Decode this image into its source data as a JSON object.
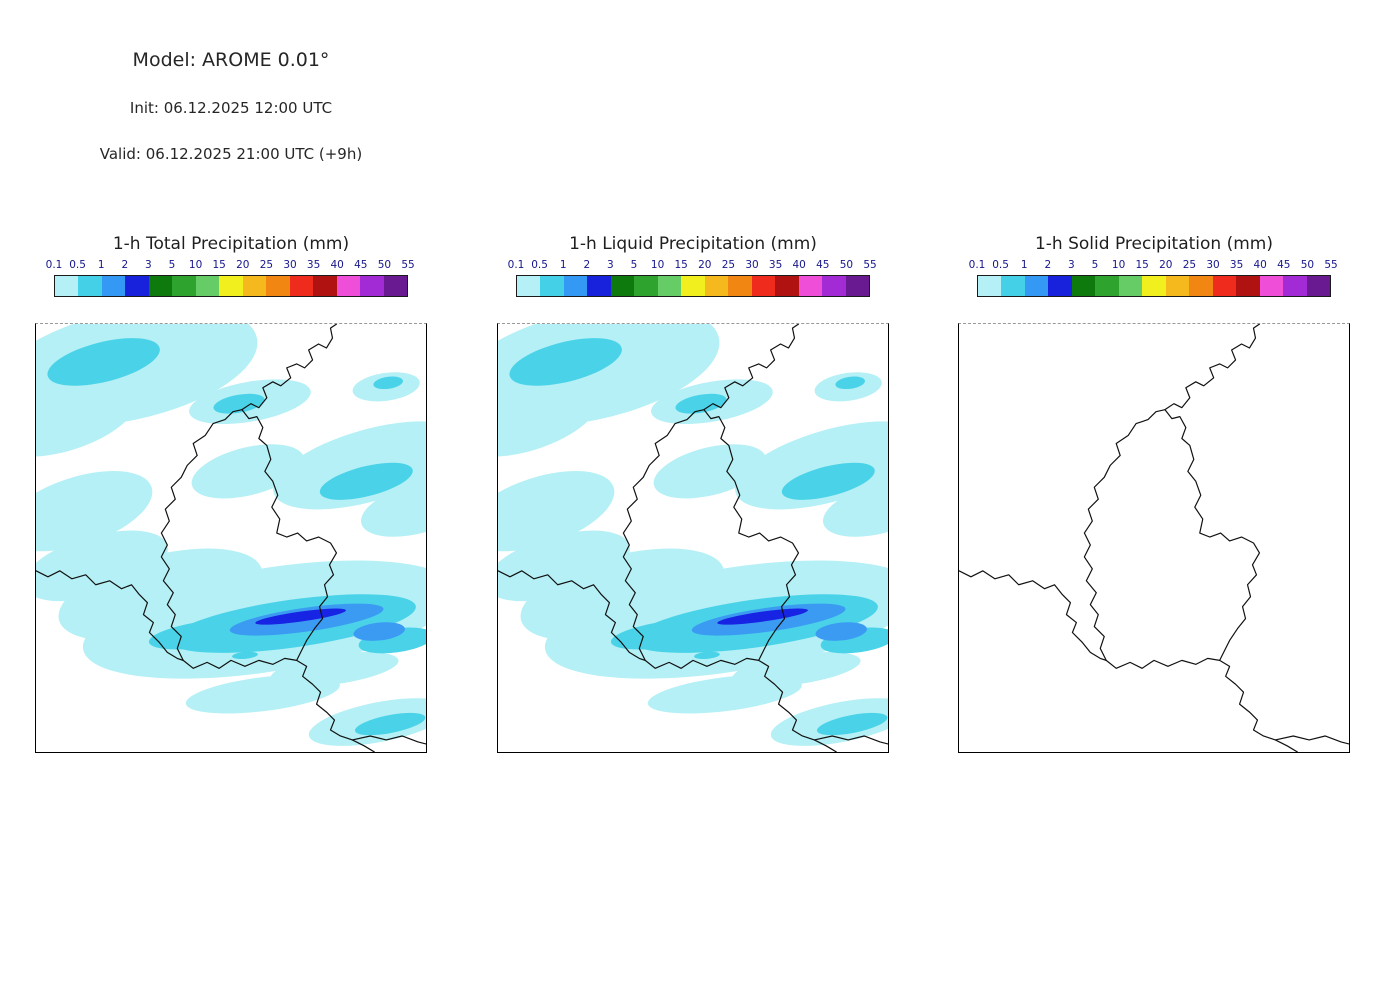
{
  "header": {
    "model": "Model: AROME 0.01°",
    "init": "Init: 06.12.2025 12:00 UTC",
    "valid": "Valid: 06.12.2025 21:00 UTC (+9h)"
  },
  "colorbar": {
    "unit": "mm",
    "ticks": [
      "0.1",
      "0.5",
      "1",
      "2",
      "3",
      "5",
      "10",
      "15",
      "20",
      "25",
      "30",
      "35",
      "40",
      "45",
      "50",
      "55"
    ],
    "colors": [
      "#b4f0f5",
      "#44d1e8",
      "#3399f5",
      "#1822dd",
      "#0e7a0e",
      "#2ea32e",
      "#66cc66",
      "#f2ef1f",
      "#f5b91e",
      "#f28613",
      "#ee2b1c",
      "#b01111",
      "#ef4fd8",
      "#a32bd6",
      "#6a1a90"
    ]
  },
  "panels": [
    {
      "title": "1-h Total Precipitation (mm)",
      "precip": true
    },
    {
      "title": "1-h Liquid Precipitation (mm)",
      "precip": true
    },
    {
      "title": "1-h Solid Precipitation (mm)",
      "precip": false
    }
  ],
  "map_palette": {
    "light": "#b4f0f5",
    "medium": "#4ad3e8",
    "heavy": "#3b9bf2",
    "intense": "#1724e3",
    "border": "#111111"
  }
}
